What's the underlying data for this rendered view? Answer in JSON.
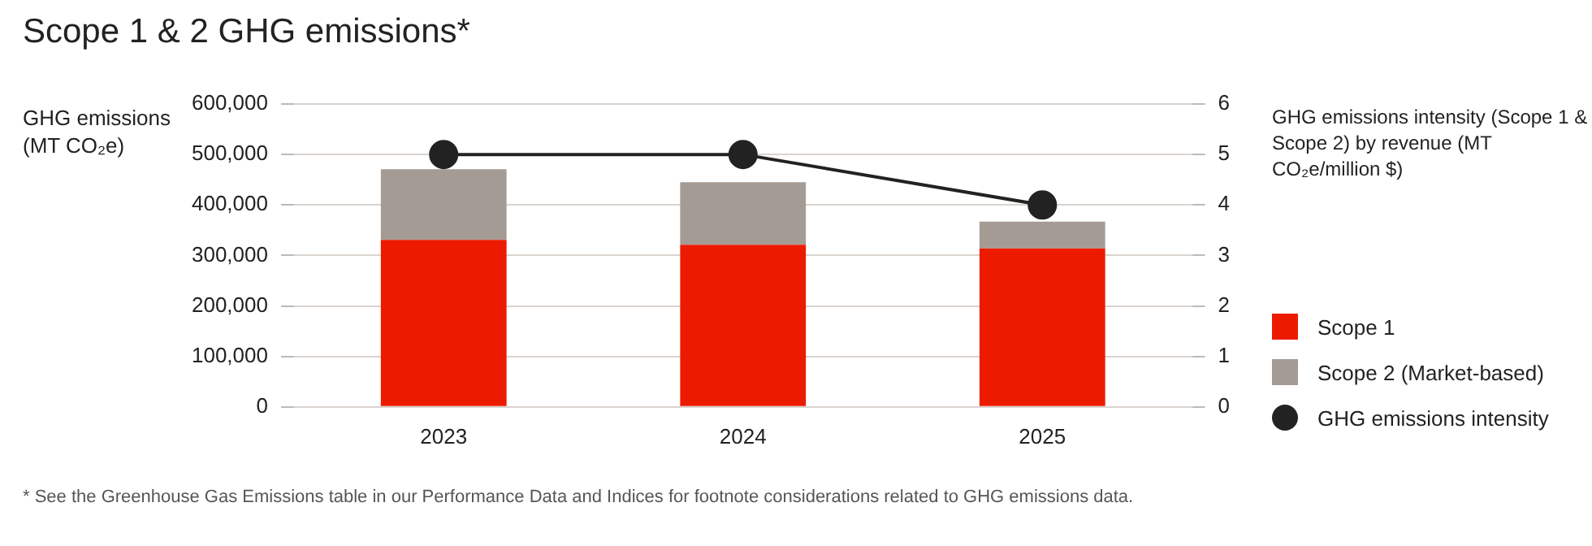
{
  "chart_data": {
    "type": "bar",
    "title": "Scope 1 & 2 GHG emissions*",
    "ylabel": "GHG emissions (MT CO₂e)",
    "y2label": "GHG emissions intensity (Scope 1 & Scope 2) by revenue (MT CO₂e/million $)",
    "categories": [
      "2023",
      "2024",
      "2025"
    ],
    "stacked": true,
    "series": [
      {
        "name": "Scope 1",
        "color": "#ec1b00",
        "values": [
          331000,
          321000,
          314000
        ]
      },
      {
        "name": "Scope 2 (Market-based)",
        "color": "#a59b95",
        "values": [
          140000,
          124000,
          53000
        ]
      },
      {
        "name": "GHG emissions intensity",
        "type": "line",
        "axis": "y2",
        "color": "#222222",
        "values": [
          5,
          5,
          4
        ]
      }
    ],
    "ylim": [
      0,
      600000
    ],
    "yticks": [
      0,
      {
        "value": 100000,
        "label": "100,000"
      },
      {
        "value": 200000,
        "label": "200,000"
      },
      {
        "value": 300000,
        "label": "300,000"
      },
      {
        "value": 400000,
        "label": "400,000"
      },
      {
        "value": 500000,
        "label": "500,000"
      },
      {
        "value": 600000,
        "label": "600,000"
      }
    ],
    "y2lim": [
      0,
      6
    ],
    "y2ticks": [
      0,
      1,
      2,
      3,
      4,
      5,
      6
    ],
    "grid": "y",
    "legend": "right",
    "marker": "circle",
    "annotations": [
      "*     See the Greenhouse Gas Emissions table in our Performance Data and Indices for footnote considerations related to GHG emissions data."
    ]
  }
}
